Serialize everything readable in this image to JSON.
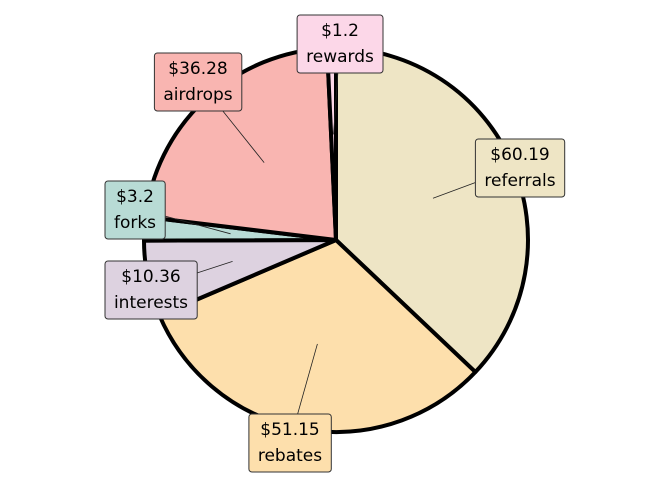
{
  "chart_data": {
    "type": "pie",
    "title": "",
    "start_angle_deg": 0,
    "direction": "clockwise",
    "slices": [
      {
        "name": "referrals",
        "value": 60.19,
        "value_label": "$60.19",
        "color": "#EEE5C5"
      },
      {
        "name": "rebates",
        "value": 51.15,
        "value_label": "$51.15",
        "color": "#FDDFAC"
      },
      {
        "name": "interests",
        "value": 10.36,
        "value_label": "$10.36",
        "color": "#DDD2E0"
      },
      {
        "name": "forks",
        "value": 3.2,
        "value_label": "$3.2",
        "color": "#B8DBD5"
      },
      {
        "name": "airdrops",
        "value": 36.28,
        "value_label": "$36.28",
        "color": "#F9B5B1"
      },
      {
        "name": "rewards",
        "value": 1.2,
        "value_label": "$1.2",
        "color": "#FCD7E8"
      }
    ]
  }
}
